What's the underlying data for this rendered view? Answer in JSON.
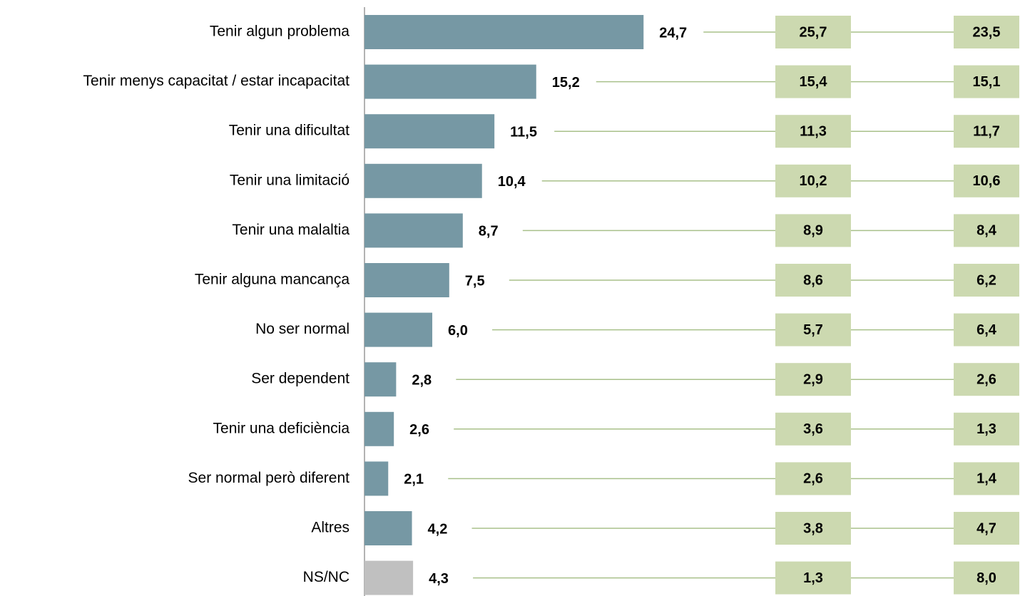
{
  "chart_data": {
    "type": "barh",
    "categories": [
      "Tenir algun problema",
      "Tenir menys capacitat / estar incapacitat",
      "Tenir una dificultat",
      "Tenir una limitació",
      "Tenir una malaltia",
      "Tenir alguna mancança",
      "No ser normal",
      "Ser dependent",
      "Tenir una deficiència",
      "Ser normal però diferent",
      "Altres",
      "NS/NC"
    ],
    "values": [
      24.7,
      15.2,
      11.5,
      10.4,
      8.7,
      7.5,
      6.0,
      2.8,
      2.6,
      2.1,
      4.2,
      4.3
    ],
    "value_labels": [
      "24,7",
      "15,2",
      "11,5",
      "10,4",
      "8,7",
      "7,5",
      "6,0",
      "2,8",
      "2,6",
      "2,1",
      "4,2",
      "4,3"
    ],
    "colors": [
      "#7698a4",
      "#7698a4",
      "#7698a4",
      "#7698a4",
      "#7698a4",
      "#7698a4",
      "#7698a4",
      "#7698a4",
      "#7698a4",
      "#7698a4",
      "#7698a4",
      "#c0c0c0"
    ],
    "xlim": [
      0,
      25
    ],
    "columns": [
      {
        "color": "#ccd9b0",
        "values": [
          25.7,
          15.4,
          11.3,
          10.2,
          8.9,
          8.6,
          5.7,
          2.9,
          3.6,
          2.6,
          3.8,
          1.3
        ],
        "value_labels": [
          "25,7",
          "15,4",
          "11,3",
          "10,2",
          "8,9",
          "8,6",
          "5,7",
          "2,9",
          "3,6",
          "2,6",
          "3,8",
          "1,3"
        ]
      },
      {
        "color": "#ccd9b0",
        "values": [
          23.5,
          15.1,
          11.7,
          10.6,
          8.4,
          6.2,
          6.4,
          2.6,
          1.3,
          1.4,
          4.7,
          8.0
        ],
        "value_labels": [
          "23,5",
          "15,1",
          "11,7",
          "10,6",
          "8,4",
          "6,2",
          "6,4",
          "2,6",
          "1,3",
          "1,4",
          "4,7",
          "8,0"
        ]
      }
    ]
  }
}
